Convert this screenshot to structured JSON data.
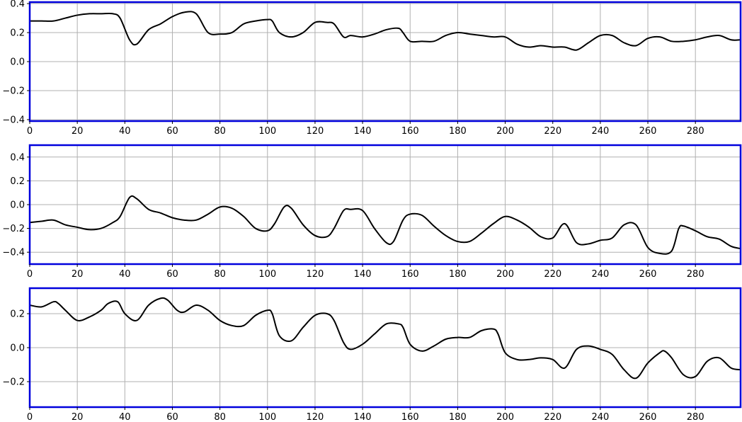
{
  "colors": {
    "frame": "#0000dd",
    "line": "#000000",
    "grid": "#b0b0b0",
    "background": "#ffffff"
  },
  "chart_data": [
    {
      "type": "line",
      "title": "",
      "xlabel": "",
      "ylabel": "",
      "xlim": [
        0,
        299
      ],
      "ylim": [
        -0.41,
        0.41
      ],
      "xticks": [
        0,
        20,
        40,
        60,
        80,
        100,
        120,
        140,
        160,
        180,
        200,
        220,
        240,
        260,
        280
      ],
      "xtick_labels": [
        "0",
        "20",
        "40",
        "60",
        "80",
        "100",
        "120",
        "140",
        "160",
        "180",
        "200",
        "220",
        "240",
        "260",
        "280"
      ],
      "yticks": [
        -0.4,
        -0.2,
        0.0,
        0.2,
        0.4
      ],
      "ytick_labels": [
        "−0.4",
        "−0.2",
        "0.0",
        "0.2",
        "0.4"
      ],
      "grid": true,
      "series": [
        {
          "x": [
            0,
            5,
            10,
            15,
            20,
            25,
            30,
            35,
            38,
            42,
            45,
            50,
            55,
            60,
            65,
            70,
            75,
            80,
            85,
            90,
            95,
            100,
            102,
            105,
            110,
            115,
            120,
            125,
            128,
            132,
            135,
            140,
            145,
            150,
            155,
            157,
            160,
            165,
            170,
            175,
            180,
            185,
            190,
            195,
            200,
            205,
            210,
            215,
            220,
            225,
            230,
            235,
            240,
            245,
            250,
            255,
            260,
            265,
            270,
            275,
            280,
            285,
            290,
            295,
            299
          ],
          "y": [
            0.28,
            0.28,
            0.28,
            0.3,
            0.32,
            0.33,
            0.33,
            0.33,
            0.3,
            0.15,
            0.12,
            0.22,
            0.26,
            0.31,
            0.34,
            0.33,
            0.2,
            0.19,
            0.2,
            0.26,
            0.28,
            0.29,
            0.28,
            0.2,
            0.17,
            0.2,
            0.27,
            0.27,
            0.26,
            0.17,
            0.18,
            0.17,
            0.19,
            0.22,
            0.23,
            0.2,
            0.14,
            0.14,
            0.14,
            0.18,
            0.2,
            0.19,
            0.18,
            0.17,
            0.17,
            0.12,
            0.1,
            0.11,
            0.1,
            0.1,
            0.08,
            0.13,
            0.18,
            0.18,
            0.13,
            0.11,
            0.16,
            0.17,
            0.14,
            0.14,
            0.15,
            0.17,
            0.18,
            0.15,
            0.15
          ]
        }
      ]
    },
    {
      "type": "line",
      "title": "",
      "xlabel": "",
      "ylabel": "",
      "xlim": [
        0,
        299
      ],
      "ylim": [
        -0.5,
        0.5
      ],
      "xticks": [
        0,
        20,
        40,
        60,
        80,
        100,
        120,
        140,
        160,
        180,
        200,
        220,
        240,
        260,
        280
      ],
      "xtick_labels": [
        "0",
        "20",
        "40",
        "60",
        "80",
        "100",
        "120",
        "140",
        "160",
        "180",
        "200",
        "220",
        "240",
        "260",
        "280"
      ],
      "yticks": [
        -0.4,
        -0.2,
        0.0,
        0.2,
        0.4
      ],
      "ytick_labels": [
        "−0.4",
        "−0.2",
        "0.0",
        "0.2",
        "0.4"
      ],
      "grid": true,
      "series": [
        {
          "x": [
            0,
            5,
            10,
            15,
            20,
            25,
            30,
            35,
            38,
            42,
            45,
            50,
            55,
            60,
            65,
            70,
            75,
            80,
            85,
            90,
            95,
            100,
            103,
            107,
            110,
            115,
            120,
            125,
            128,
            132,
            135,
            140,
            145,
            150,
            153,
            157,
            160,
            165,
            170,
            175,
            180,
            185,
            190,
            195,
            200,
            205,
            210,
            215,
            220,
            225,
            230,
            235,
            240,
            245,
            250,
            255,
            260,
            265,
            270,
            273,
            275,
            280,
            285,
            290,
            295,
            299
          ],
          "y": [
            -0.15,
            -0.14,
            -0.13,
            -0.17,
            -0.19,
            -0.21,
            -0.2,
            -0.15,
            -0.1,
            0.06,
            0.05,
            -0.04,
            -0.07,
            -0.11,
            -0.13,
            -0.13,
            -0.08,
            -0.02,
            -0.03,
            -0.1,
            -0.2,
            -0.22,
            -0.16,
            -0.02,
            -0.03,
            -0.17,
            -0.26,
            -0.27,
            -0.2,
            -0.05,
            -0.04,
            -0.05,
            -0.2,
            -0.32,
            -0.31,
            -0.13,
            -0.08,
            -0.09,
            -0.18,
            -0.26,
            -0.31,
            -0.31,
            -0.24,
            -0.16,
            -0.1,
            -0.13,
            -0.19,
            -0.27,
            -0.28,
            -0.16,
            -0.32,
            -0.33,
            -0.3,
            -0.28,
            -0.17,
            -0.17,
            -0.36,
            -0.41,
            -0.39,
            -0.2,
            -0.18,
            -0.22,
            -0.27,
            -0.29,
            -0.35,
            -0.37
          ]
        }
      ]
    },
    {
      "type": "line",
      "title": "",
      "xlabel": "",
      "ylabel": "",
      "xlim": [
        0,
        299
      ],
      "ylim": [
        -0.35,
        0.35
      ],
      "xticks": [
        0,
        20,
        40,
        60,
        80,
        100,
        120,
        140,
        160,
        180,
        200,
        220,
        240,
        260,
        280
      ],
      "xtick_labels": [
        "0",
        "20",
        "40",
        "60",
        "80",
        "100",
        "120",
        "140",
        "160",
        "180",
        "200",
        "220",
        "240",
        "260",
        "280"
      ],
      "yticks": [
        -0.2,
        0.0,
        0.2
      ],
      "ytick_labels": [
        "−0.2",
        "0.0",
        "0.2"
      ],
      "grid": true,
      "series": [
        {
          "x": [
            0,
            5,
            10,
            12,
            15,
            20,
            25,
            30,
            33,
            37,
            40,
            45,
            50,
            55,
            58,
            62,
            65,
            70,
            75,
            80,
            85,
            90,
            95,
            100,
            102,
            105,
            110,
            115,
            120,
            125,
            128,
            132,
            135,
            140,
            145,
            150,
            155,
            157,
            160,
            165,
            170,
            175,
            180,
            185,
            190,
            195,
            197,
            200,
            205,
            210,
            215,
            220,
            225,
            230,
            235,
            240,
            245,
            250,
            255,
            260,
            265,
            267,
            270,
            275,
            280,
            285,
            290,
            295,
            299
          ],
          "y": [
            0.25,
            0.24,
            0.27,
            0.26,
            0.22,
            0.16,
            0.18,
            0.22,
            0.26,
            0.27,
            0.2,
            0.16,
            0.25,
            0.29,
            0.28,
            0.22,
            0.21,
            0.25,
            0.22,
            0.16,
            0.13,
            0.13,
            0.19,
            0.22,
            0.2,
            0.07,
            0.04,
            0.12,
            0.19,
            0.2,
            0.16,
            0.03,
            -0.01,
            0.02,
            0.08,
            0.14,
            0.14,
            0.12,
            0.02,
            -0.02,
            0.01,
            0.05,
            0.06,
            0.06,
            0.1,
            0.11,
            0.08,
            -0.03,
            -0.07,
            -0.07,
            -0.06,
            -0.07,
            -0.12,
            -0.01,
            0.01,
            -0.01,
            -0.04,
            -0.13,
            -0.18,
            -0.09,
            -0.03,
            -0.02,
            -0.06,
            -0.16,
            -0.17,
            -0.08,
            -0.06,
            -0.12,
            -0.13
          ]
        }
      ]
    }
  ]
}
